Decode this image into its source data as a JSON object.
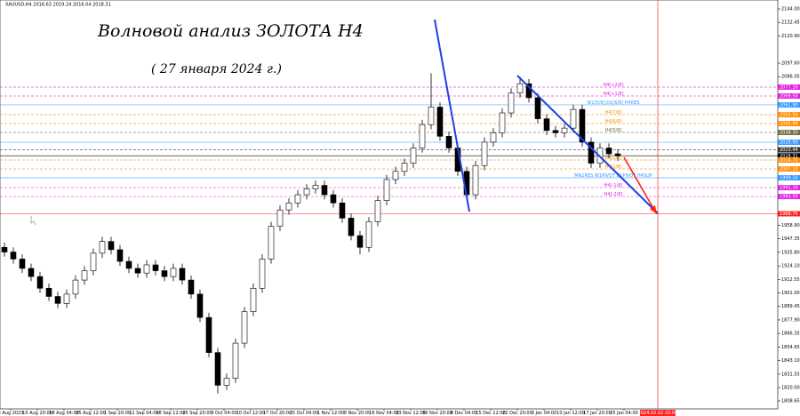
{
  "chart_data": {
    "type": "candlestick",
    "symbol_info": "XAUUSD,H4  2016.63 2019.24 2016.04 2018.31",
    "title": "Волновой анализ ЗОЛОТА H4",
    "subtitle": "( 27 января 2024 г.)",
    "categories": [
      "3 Aug 2023",
      "10 Aug 20:00",
      "18 Aug 04:00",
      "25 Aug 12:00",
      "1 Sep 20:00",
      "11 Sep 04:00",
      "18 Sep 12:00",
      "25 Sep 20:00",
      "3 Oct 04:00",
      "10 Oct 12:00",
      "17 Oct 20:00",
      "25 Oct 04:00",
      "1 Nov 12:00",
      "8 Nov 20:00",
      "16 Nov 04:00",
      "23 Nov 12:00",
      "30 Nov 20:00",
      "8 Dec 04:00",
      "15 Dec 12:00",
      "22 Dec 20:00",
      "3 Jan 04:00",
      "10 Jan 12:00",
      "17 Jan 20:00",
      "25 Jan 04:00"
    ],
    "marker_date": "2024.02.02 20:00",
    "open": [
      1940,
      1936,
      1930,
      1922,
      1915,
      1905,
      1898,
      1892,
      1900,
      1912,
      1920,
      1935,
      1945,
      1938,
      1928,
      1922,
      1918,
      1925,
      1920,
      1915,
      1922,
      1912,
      1900,
      1880,
      1850,
      1822,
      1828,
      1858,
      1885,
      1905,
      1930,
      1958,
      1972,
      1978,
      1985,
      1990,
      1993,
      1985,
      1978,
      1965,
      1950,
      1940,
      1962,
      1980,
      1998,
      2005,
      2012,
      2025,
      2045,
      2060,
      2035,
      2025,
      2005,
      1985,
      2010,
      2030,
      2038,
      2055,
      2072,
      2080,
      2068,
      2050,
      2040,
      2038,
      2042,
      2058,
      2030,
      2012,
      2025,
      2020
    ],
    "high": [
      1944,
      1940,
      1934,
      1926,
      1919,
      1909,
      1902,
      1904,
      1916,
      1924,
      1939,
      1949,
      1949,
      1942,
      1932,
      1926,
      1929,
      1929,
      1924,
      1926,
      1926,
      1916,
      1904,
      1884,
      1854,
      1832,
      1862,
      1889,
      1909,
      1934,
      1962,
      1976,
      1982,
      1989,
      1994,
      1997,
      1997,
      1989,
      1982,
      1969,
      1954,
      1966,
      1984,
      2002,
      2009,
      2016,
      2029,
      2049,
      2089,
      2064,
      2039,
      2029,
      2009,
      2014,
      2034,
      2042,
      2059,
      2076,
      2086,
      2084,
      2072,
      2054,
      2044,
      2046,
      2062,
      2062,
      2034,
      2029,
      2029,
      2024
    ],
    "low": [
      1932,
      1926,
      1918,
      1911,
      1901,
      1894,
      1888,
      1888,
      1896,
      1908,
      1916,
      1931,
      1934,
      1924,
      1918,
      1914,
      1914,
      1916,
      1911,
      1911,
      1908,
      1896,
      1876,
      1846,
      1815,
      1818,
      1824,
      1854,
      1881,
      1901,
      1926,
      1954,
      1968,
      1974,
      1981,
      1986,
      1981,
      1974,
      1961,
      1946,
      1934,
      1936,
      1958,
      1976,
      1994,
      2001,
      2008,
      2021,
      2041,
      2031,
      2021,
      2001,
      1980,
      1981,
      2006,
      2026,
      2034,
      2051,
      2068,
      2064,
      2046,
      2036,
      2034,
      2034,
      2038,
      2026,
      2008,
      2008,
      2016,
      2014
    ],
    "close": [
      1936,
      1930,
      1922,
      1915,
      1905,
      1898,
      1892,
      1900,
      1912,
      1920,
      1935,
      1945,
      1938,
      1928,
      1922,
      1918,
      1925,
      1920,
      1915,
      1922,
      1912,
      1900,
      1880,
      1850,
      1822,
      1828,
      1858,
      1885,
      1905,
      1930,
      1958,
      1972,
      1978,
      1985,
      1990,
      1993,
      1985,
      1978,
      1965,
      1950,
      1940,
      1962,
      1980,
      1998,
      2005,
      2012,
      2025,
      2045,
      2060,
      2035,
      2025,
      2005,
      1985,
      2010,
      2030,
      2038,
      2055,
      2072,
      2080,
      2068,
      2050,
      2040,
      2038,
      2042,
      2058,
      2030,
      2012,
      2025,
      2020,
      2018.31
    ],
    "ylim": [
      1801.8,
      2151.6
    ],
    "yticks": [
      {
        "value": 2144,
        "label": "2144.00"
      },
      {
        "value": 2132.45,
        "label": "2132.45"
      },
      {
        "value": 2120.9,
        "label": "2120.90"
      },
      {
        "value": 2097.6,
        "label": "2097.60"
      },
      {
        "value": 2086.05,
        "label": "2086.05"
      },
      {
        "value": 1958.9,
        "label": "1958.90"
      },
      {
        "value": 1947.35,
        "label": "1947.35"
      },
      {
        "value": 1935.8,
        "label": "1935.80"
      },
      {
        "value": 1924.1,
        "label": "1924.10"
      },
      {
        "value": 1912.55,
        "label": "1912.55"
      },
      {
        "value": 1901,
        "label": "1901.00"
      },
      {
        "value": 1889.45,
        "label": "1889.45"
      },
      {
        "value": 1877.9,
        "label": "1877.90"
      },
      {
        "value": 1866.35,
        "label": "1866.35"
      },
      {
        "value": 1854.65,
        "label": "1854.65"
      },
      {
        "value": 1843.1,
        "label": "1843.10"
      },
      {
        "value": 1831.55,
        "label": "1831.55"
      },
      {
        "value": 1820,
        "label": "1820.00"
      },
      {
        "value": 1808.65,
        "label": "1808.65"
      }
    ],
    "levels": [
      {
        "name": "H4[+2/8]",
        "value": 2077.1,
        "label": "2077.10",
        "color": "#e020e0",
        "dash": true
      },
      {
        "name": "H4[+1/8]",
        "value": 2069.5,
        "label": "2069.50",
        "color": "#e020e0",
        "dash": true
      },
      {
        "name": "W1[5/8];D1[6/8] H4RES",
        "value": 2061.9,
        "label": "2061.90",
        "color": "#3399ff",
        "dash": false
      },
      {
        "name": "H4[7/8]",
        "value": 2053.5,
        "label": "2053.50",
        "color": "#ff8c00",
        "dash": true
      },
      {
        "name": "H4[6/8]",
        "value": 2045.9,
        "label": "2045.90",
        "color": "#ff8c00",
        "dash": true
      },
      {
        "name": "H4[5/8]",
        "value": 2038.3,
        "label": "2038.30",
        "color": "#707040",
        "dash": true
      },
      {
        "value": 2029.9,
        "label": "2029.90",
        "color": "#3399ff",
        "dash": false
      },
      {
        "value": 2023.44,
        "label": "2023.44",
        "color": "#333333",
        "dash": true
      },
      {
        "value": 2018.31,
        "label": "2018.31",
        "color": "#000000",
        "dash": false
      },
      {
        "name": "H4[2/8]",
        "value": 2014.7,
        "label": "2014.70",
        "color": "#ff8c00",
        "dash": true
      },
      {
        "name": "H4[1/8]",
        "value": 2007.1,
        "label": "2007.10",
        "color": "#ff8c00",
        "dash": true
      },
      {
        "name": "MN1RES W1PIVOT D1PIVOT H4SUP",
        "value": 1999.5,
        "label": "1999.50",
        "color": "#3399ff",
        "dash": false
      },
      {
        "name": "H4[-1/8]",
        "value": 1991.1,
        "label": "1991.10",
        "color": "#e020e0",
        "dash": true
      },
      {
        "name": "H4[-2/8]",
        "value": 1983.5,
        "label": "1983.50",
        "color": "#e020e0",
        "dash": true
      },
      {
        "value": 1968.75,
        "label": "1968.75",
        "color": "#ff2020",
        "dash": false
      }
    ]
  }
}
